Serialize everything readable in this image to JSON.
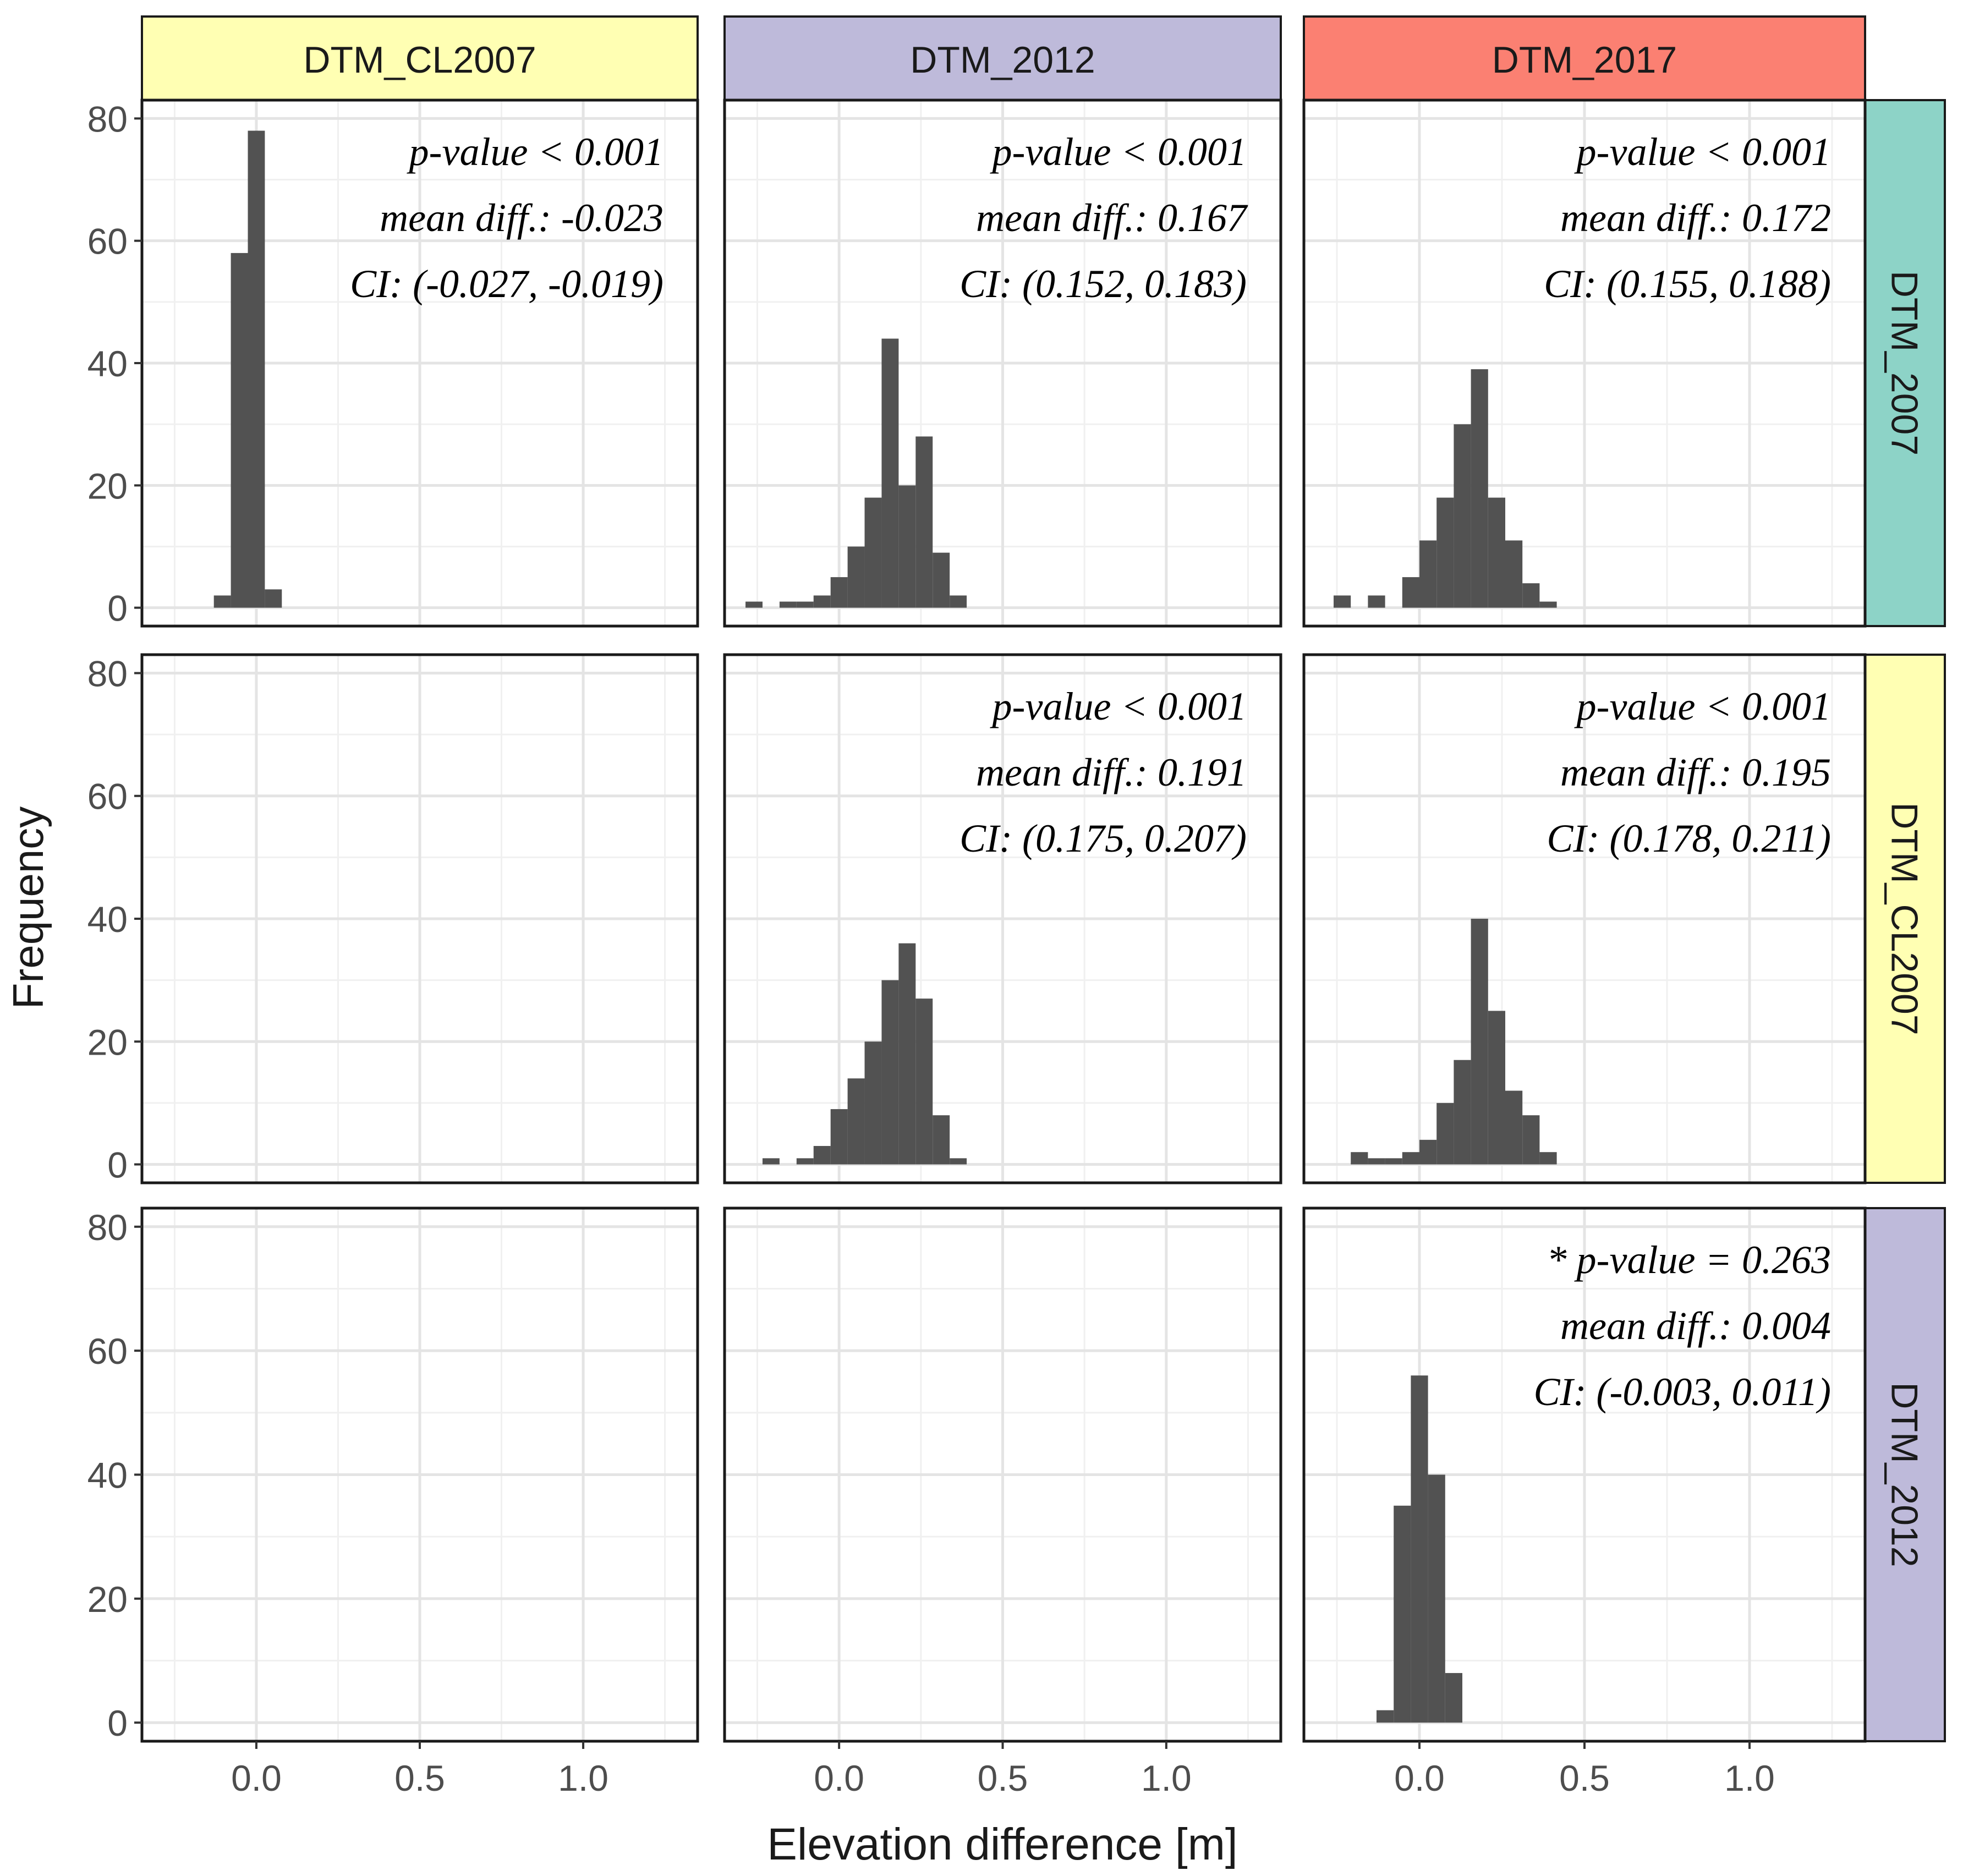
{
  "chart_data": {
    "type": "bar",
    "layout": "facet_grid",
    "xlabel": "Elevation difference [m]",
    "ylabel": "Frequency",
    "xlim": [
      -0.35,
      1.35
    ],
    "ylim": [
      -3,
      83
    ],
    "x_ticks": [
      0.0,
      0.5,
      1.0
    ],
    "x_tick_labels": [
      "0.0",
      "0.5",
      "1.0"
    ],
    "y_ticks": [
      0,
      20,
      40,
      60,
      80
    ],
    "y_tick_labels": [
      "0",
      "20",
      "40",
      "60",
      "80"
    ],
    "grid": true,
    "bar_color": "#525252",
    "columns": [
      {
        "label": "DTM_CL2007",
        "color": "#ffffb3"
      },
      {
        "label": "DTM_2012",
        "color": "#bebada"
      },
      {
        "label": "DTM_2017",
        "color": "#fb8072"
      }
    ],
    "rows": [
      {
        "label": "DTM_2007",
        "color": "#8dd3c7"
      },
      {
        "label": "DTM_CL2007",
        "color": "#ffffb3"
      },
      {
        "label": "DTM_2012",
        "color": "#bebada"
      }
    ],
    "panels": [
      {
        "row": 0,
        "col": 0,
        "bin_width": 0.052,
        "bins": [
          {
            "x": -0.104,
            "count": 2
          },
          {
            "x": -0.052,
            "count": 58
          },
          {
            "x": 0.0,
            "count": 78
          },
          {
            "x": 0.052,
            "count": 3
          }
        ],
        "annotation": [
          "p-value < 0.001",
          "mean diff.: -0.023",
          "CI: (-0.027, -0.019)"
        ]
      },
      {
        "row": 0,
        "col": 1,
        "bin_width": 0.052,
        "bins": [
          {
            "x": -0.26,
            "count": 1
          },
          {
            "x": -0.156,
            "count": 1
          },
          {
            "x": -0.104,
            "count": 1
          },
          {
            "x": -0.052,
            "count": 2
          },
          {
            "x": 0.0,
            "count": 5
          },
          {
            "x": 0.052,
            "count": 10
          },
          {
            "x": 0.104,
            "count": 18
          },
          {
            "x": 0.156,
            "count": 44
          },
          {
            "x": 0.208,
            "count": 20
          },
          {
            "x": 0.26,
            "count": 28
          },
          {
            "x": 0.312,
            "count": 9
          },
          {
            "x": 0.364,
            "count": 2
          }
        ],
        "annotation": [
          "p-value < 0.001",
          "mean diff.: 0.167",
          "CI: (0.152, 0.183)"
        ]
      },
      {
        "row": 0,
        "col": 2,
        "bin_width": 0.052,
        "bins": [
          {
            "x": -0.234,
            "count": 2
          },
          {
            "x": -0.13,
            "count": 2
          },
          {
            "x": -0.026,
            "count": 5
          },
          {
            "x": 0.026,
            "count": 11
          },
          {
            "x": 0.078,
            "count": 18
          },
          {
            "x": 0.13,
            "count": 30
          },
          {
            "x": 0.182,
            "count": 39
          },
          {
            "x": 0.234,
            "count": 18
          },
          {
            "x": 0.286,
            "count": 11
          },
          {
            "x": 0.338,
            "count": 4
          },
          {
            "x": 0.39,
            "count": 1
          }
        ],
        "annotation": [
          "p-value < 0.001",
          "mean diff.: 0.172",
          "CI: (0.155, 0.188)"
        ]
      },
      {
        "row": 1,
        "col": 0,
        "bin_width": 0.052,
        "bins": [],
        "annotation": []
      },
      {
        "row": 1,
        "col": 1,
        "bin_width": 0.052,
        "bins": [
          {
            "x": -0.208,
            "count": 1
          },
          {
            "x": -0.104,
            "count": 1
          },
          {
            "x": -0.052,
            "count": 3
          },
          {
            "x": 0.0,
            "count": 9
          },
          {
            "x": 0.052,
            "count": 14
          },
          {
            "x": 0.104,
            "count": 20
          },
          {
            "x": 0.156,
            "count": 30
          },
          {
            "x": 0.208,
            "count": 36
          },
          {
            "x": 0.26,
            "count": 27
          },
          {
            "x": 0.312,
            "count": 8
          },
          {
            "x": 0.364,
            "count": 1
          }
        ],
        "annotation": [
          "p-value < 0.001",
          "mean diff.: 0.191",
          "CI: (0.175, 0.207)"
        ]
      },
      {
        "row": 1,
        "col": 2,
        "bin_width": 0.052,
        "bins": [
          {
            "x": -0.182,
            "count": 2
          },
          {
            "x": -0.13,
            "count": 1
          },
          {
            "x": -0.078,
            "count": 1
          },
          {
            "x": -0.026,
            "count": 2
          },
          {
            "x": 0.026,
            "count": 4
          },
          {
            "x": 0.078,
            "count": 10
          },
          {
            "x": 0.13,
            "count": 17
          },
          {
            "x": 0.182,
            "count": 40
          },
          {
            "x": 0.234,
            "count": 25
          },
          {
            "x": 0.286,
            "count": 12
          },
          {
            "x": 0.338,
            "count": 8
          },
          {
            "x": 0.39,
            "count": 2
          }
        ],
        "annotation": [
          "p-value < 0.001",
          "mean diff.: 0.195",
          "CI: (0.178, 0.211)"
        ]
      },
      {
        "row": 2,
        "col": 0,
        "bin_width": 0.052,
        "bins": [],
        "annotation": []
      },
      {
        "row": 2,
        "col": 1,
        "bin_width": 0.052,
        "bins": [],
        "annotation": []
      },
      {
        "row": 2,
        "col": 2,
        "bin_width": 0.052,
        "bins": [
          {
            "x": -0.104,
            "count": 2
          },
          {
            "x": -0.052,
            "count": 35
          },
          {
            "x": 0.0,
            "count": 56
          },
          {
            "x": 0.052,
            "count": 40
          },
          {
            "x": 0.104,
            "count": 8
          }
        ],
        "annotation": [
          "* p-value = 0.263",
          "mean diff.: 0.004",
          "CI: (-0.003, 0.011)"
        ]
      }
    ]
  }
}
